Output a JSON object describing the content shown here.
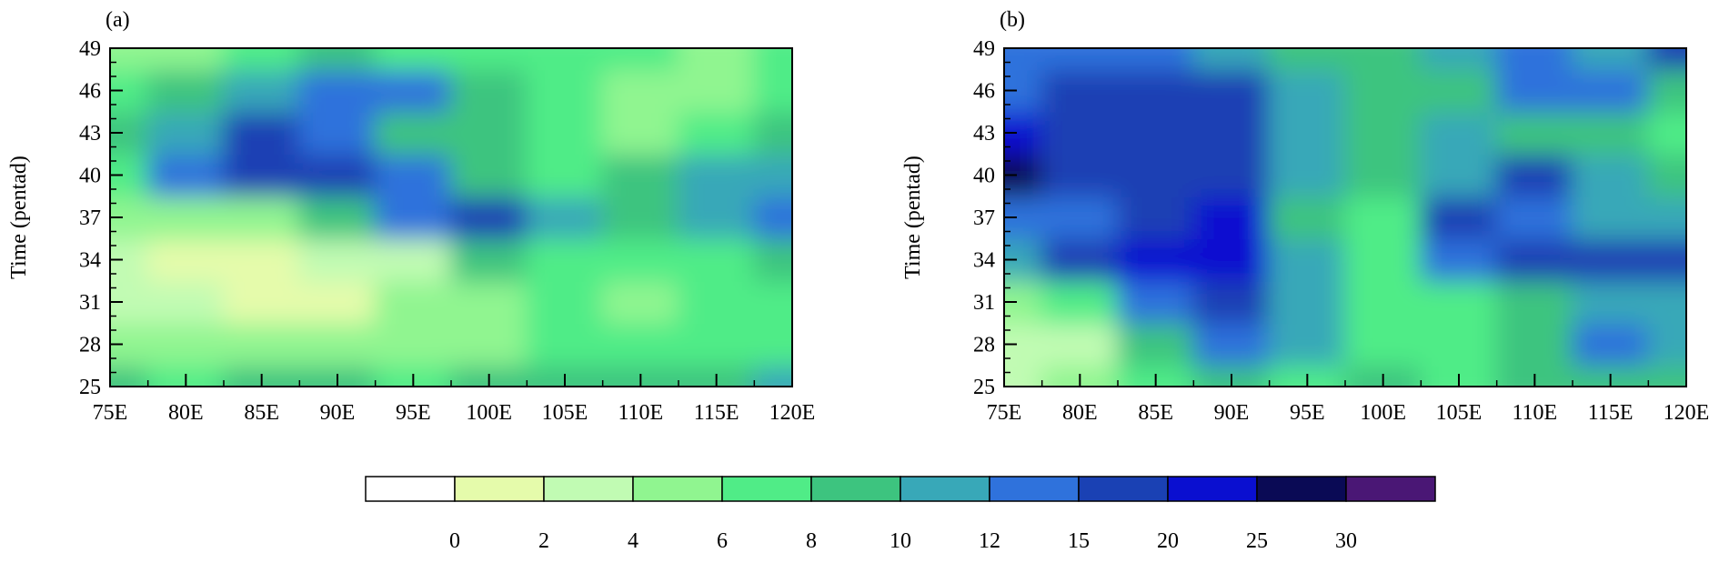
{
  "chart_data": [
    {
      "type": "heatmap",
      "panel_label": "(a)",
      "xlabel": "",
      "ylabel": "Time (pentad)",
      "xlim": [
        75,
        120
      ],
      "ylim": [
        25,
        49
      ],
      "x_ticks": [
        75,
        80,
        85,
        90,
        95,
        100,
        105,
        110,
        115,
        120
      ],
      "x_tick_labels": [
        "75E",
        "80E",
        "85E",
        "90E",
        "95E",
        "100E",
        "105E",
        "110E",
        "115E",
        "120E"
      ],
      "y_ticks": [
        25,
        28,
        31,
        34,
        37,
        40,
        43,
        46,
        49
      ],
      "y_tick_labels": [
        "25",
        "28",
        "31",
        "34",
        "37",
        "40",
        "43",
        "46",
        "49"
      ],
      "x": [
        75,
        80,
        85,
        90,
        95,
        100,
        105,
        110,
        115,
        120
      ],
      "y": [
        25,
        28,
        31,
        34,
        37,
        40,
        43,
        46,
        49
      ],
      "z": [
        [
          8,
          7,
          8,
          8,
          7,
          8,
          8,
          9,
          8,
          10
        ],
        [
          4,
          5,
          4,
          4,
          4,
          5,
          6,
          6,
          6,
          7
        ],
        [
          3,
          2,
          1,
          1,
          4,
          5,
          7,
          4,
          6,
          6
        ],
        [
          2,
          1,
          1,
          2,
          3,
          8,
          6,
          6,
          7,
          8
        ],
        [
          5,
          4,
          5,
          9,
          14,
          18,
          11,
          9,
          10,
          12
        ],
        [
          7,
          12,
          17,
          17,
          13,
          8,
          7,
          9,
          11,
          10
        ],
        [
          9,
          11,
          16,
          13,
          8,
          8,
          7,
          5,
          6,
          8
        ],
        [
          6,
          9,
          11,
          13,
          12,
          8,
          7,
          4,
          5,
          7
        ],
        [
          5,
          4,
          7,
          8,
          7,
          6,
          6,
          6,
          5,
          7
        ]
      ]
    },
    {
      "type": "heatmap",
      "panel_label": "(b)",
      "xlabel": "",
      "ylabel": "Time (pentad)",
      "xlim": [
        75,
        120
      ],
      "ylim": [
        25,
        49
      ],
      "x_ticks": [
        75,
        80,
        85,
        90,
        95,
        100,
        105,
        110,
        115,
        120
      ],
      "x_tick_labels": [
        "75E",
        "80E",
        "85E",
        "90E",
        "95E",
        "100E",
        "105E",
        "110E",
        "115E",
        "120E"
      ],
      "y_ticks": [
        25,
        28,
        31,
        34,
        37,
        40,
        43,
        46,
        49
      ],
      "y_tick_labels": [
        "25",
        "28",
        "31",
        "34",
        "37",
        "40",
        "43",
        "46",
        "49"
      ],
      "x": [
        75,
        80,
        85,
        90,
        95,
        100,
        105,
        110,
        115,
        120
      ],
      "y": [
        25,
        28,
        31,
        34,
        37,
        40,
        43,
        46,
        49
      ],
      "z": [
        [
          3,
          4,
          6,
          8,
          7,
          8,
          7,
          8,
          9,
          8
        ],
        [
          2,
          3,
          8,
          12,
          11,
          7,
          6,
          8,
          12,
          10
        ],
        [
          4,
          6,
          12,
          18,
          10,
          6,
          7,
          8,
          11,
          10
        ],
        [
          10,
          16,
          22,
          24,
          10,
          6,
          12,
          16,
          17,
          15
        ],
        [
          12,
          14,
          19,
          22,
          9,
          7,
          15,
          13,
          11,
          10
        ],
        [
          25,
          18,
          16,
          17,
          10,
          8,
          11,
          16,
          10,
          9
        ],
        [
          20,
          18,
          17,
          16,
          11,
          9,
          10,
          9,
          8,
          7
        ],
        [
          12,
          17,
          19,
          16,
          10,
          8,
          9,
          14,
          12,
          9
        ],
        [
          12,
          14,
          12,
          10,
          9,
          9,
          10,
          12,
          11,
          15
        ]
      ]
    }
  ],
  "colorbar": {
    "levels": [
      "0",
      "2",
      "4",
      "6",
      "8",
      "10",
      "12",
      "15",
      "20",
      "25",
      "30"
    ],
    "colors": [
      "#ffffff",
      "#e5fbab",
      "#c1fbb3",
      "#90f590",
      "#50ec87",
      "#3dc47f",
      "#38a8b8",
      "#2f72dc",
      "#1a41b4",
      "#0a0fd0",
      "#0a0a55",
      "#4a1775"
    ]
  }
}
